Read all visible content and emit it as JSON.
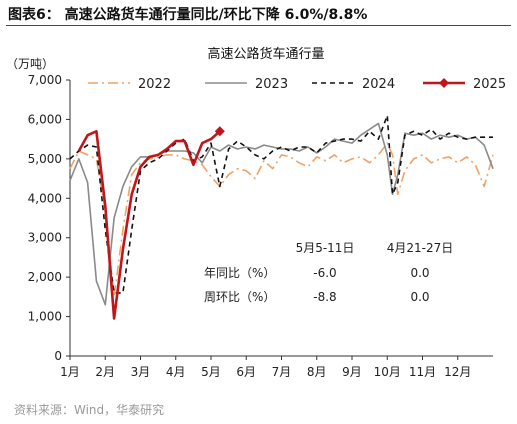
{
  "figure_title": "图表6：  高速公路货车通行量同比/环比下降 6.0%/8.8%",
  "source": "资料来源：Wind，华泰研究",
  "chart_data": {
    "type": "line",
    "title": "高速公路货车通行量",
    "unit_label": "（万吨）",
    "ylim": [
      0,
      7000
    ],
    "yticks": [
      0,
      1000,
      2000,
      3000,
      4000,
      5000,
      6000,
      7000
    ],
    "ytick_labels": [
      "0",
      "1,000",
      "2,000",
      "3,000",
      "4,000",
      "5,000",
      "6,000",
      "7,000"
    ],
    "xlim": [
      1,
      13
    ],
    "xtick_labels": [
      "1月",
      "2月",
      "3月",
      "4月",
      "5月",
      "6月",
      "7月",
      "8月",
      "9月",
      "10月",
      "11月",
      "12月"
    ],
    "legend_position": "top",
    "series": [
      {
        "name": "2022",
        "color": "#f0a265",
        "style": "dashdot",
        "marker": false,
        "x": [
          1.0,
          1.25,
          1.5,
          1.75,
          2.0,
          2.25,
          2.5,
          2.75,
          3.0,
          3.25,
          3.5,
          3.75,
          4.0,
          4.25,
          4.5,
          4.75,
          5.0,
          5.25,
          5.5,
          5.75,
          6.0,
          6.25,
          6.5,
          6.75,
          7.0,
          7.25,
          7.5,
          7.75,
          8.0,
          8.25,
          8.5,
          8.75,
          9.0,
          9.25,
          9.5,
          9.75,
          10.0,
          10.15,
          10.3,
          10.5,
          10.75,
          11.0,
          11.25,
          11.5,
          11.75,
          12.0,
          12.25,
          12.5,
          12.75,
          13.0
        ],
        "y": [
          4750,
          5200,
          5100,
          5000,
          3700,
          1500,
          3200,
          4600,
          4900,
          5000,
          5050,
          5100,
          5100,
          5000,
          4950,
          4850,
          4550,
          4300,
          4600,
          4750,
          4700,
          4500,
          4950,
          4750,
          5100,
          5050,
          4900,
          4800,
          5050,
          4950,
          5100,
          4900,
          5000,
          5050,
          4900,
          5100,
          5400,
          5100,
          4100,
          4700,
          5000,
          5100,
          4900,
          5000,
          5050,
          4900,
          5050,
          4850,
          4300,
          5100
        ]
      },
      {
        "name": "2023",
        "color": "#8a8a8a",
        "style": "solid",
        "marker": false,
        "x": [
          1.0,
          1.25,
          1.5,
          1.75,
          2.0,
          2.25,
          2.5,
          2.75,
          3.0,
          3.25,
          3.5,
          3.75,
          4.0,
          4.25,
          4.5,
          4.75,
          5.0,
          5.25,
          5.5,
          5.75,
          6.0,
          6.25,
          6.5,
          6.75,
          7.0,
          7.25,
          7.5,
          7.75,
          8.0,
          8.25,
          8.5,
          8.75,
          9.0,
          9.25,
          9.5,
          9.75,
          10.0,
          10.15,
          10.3,
          10.5,
          10.75,
          11.0,
          11.25,
          11.5,
          11.75,
          12.0,
          12.25,
          12.5,
          12.75,
          13.0
        ],
        "y": [
          4450,
          5000,
          4400,
          1900,
          1300,
          3500,
          4300,
          4800,
          5050,
          5050,
          5100,
          5200,
          5200,
          5200,
          5150,
          4900,
          5300,
          5200,
          5350,
          5250,
          5300,
          5250,
          5350,
          5300,
          5250,
          5250,
          5200,
          5300,
          5150,
          5300,
          5500,
          5450,
          5400,
          5600,
          5750,
          5900,
          5100,
          4100,
          4600,
          5650,
          5600,
          5650,
          5500,
          5600,
          5550,
          5600,
          5500,
          5550,
          5350,
          4750
        ]
      },
      {
        "name": "2024",
        "color": "#111111",
        "style": "dash",
        "marker": false,
        "x": [
          1.0,
          1.25,
          1.5,
          1.75,
          2.0,
          2.25,
          2.5,
          2.75,
          3.0,
          3.25,
          3.5,
          3.75,
          4.0,
          4.25,
          4.5,
          4.75,
          5.0,
          5.25,
          5.5,
          5.75,
          6.0,
          6.25,
          6.5,
          6.75,
          7.0,
          7.25,
          7.5,
          7.75,
          8.0,
          8.25,
          8.5,
          8.75,
          9.0,
          9.25,
          9.5,
          9.75,
          10.0,
          10.15,
          10.3,
          10.5,
          10.75,
          11.0,
          11.25,
          11.5,
          11.75,
          12.0,
          12.25,
          12.5,
          12.75,
          13.0
        ],
        "y": [
          5000,
          5200,
          5350,
          5300,
          3200,
          1600,
          1600,
          3200,
          4700,
          4900,
          5000,
          5200,
          5400,
          5500,
          4950,
          5050,
          5400,
          4300,
          5250,
          5450,
          5300,
          5100,
          5000,
          5200,
          5300,
          5200,
          5300,
          5300,
          5150,
          5400,
          5450,
          5500,
          5500,
          5450,
          5700,
          5500,
          6100,
          4100,
          4400,
          5600,
          5700,
          5600,
          5750,
          5500,
          5650,
          5550,
          5500,
          5550,
          5550,
          5550
        ]
      },
      {
        "name": "2025",
        "color": "#c0161b",
        "style": "solid",
        "marker": true,
        "x": [
          1.25,
          1.5,
          1.75,
          2.0,
          2.25,
          2.5,
          2.75,
          3.0,
          3.25,
          3.5,
          3.75,
          4.0,
          4.25,
          4.5,
          4.75,
          5.0,
          5.25
        ],
        "y": [
          5200,
          5600,
          5700,
          3800,
          950,
          2700,
          4100,
          4800,
          5050,
          5100,
          5250,
          5450,
          5450,
          4850,
          5400,
          5500,
          5700
        ]
      }
    ],
    "annotations": {
      "col_headers": [
        "5月5-11日",
        "4月21-27日"
      ],
      "rows": [
        {
          "label": "年同比（%）",
          "values": [
            "-6.0",
            "0.0"
          ]
        },
        {
          "label": "周环比（%）",
          "values": [
            "-8.8",
            "0.0"
          ]
        }
      ]
    }
  }
}
